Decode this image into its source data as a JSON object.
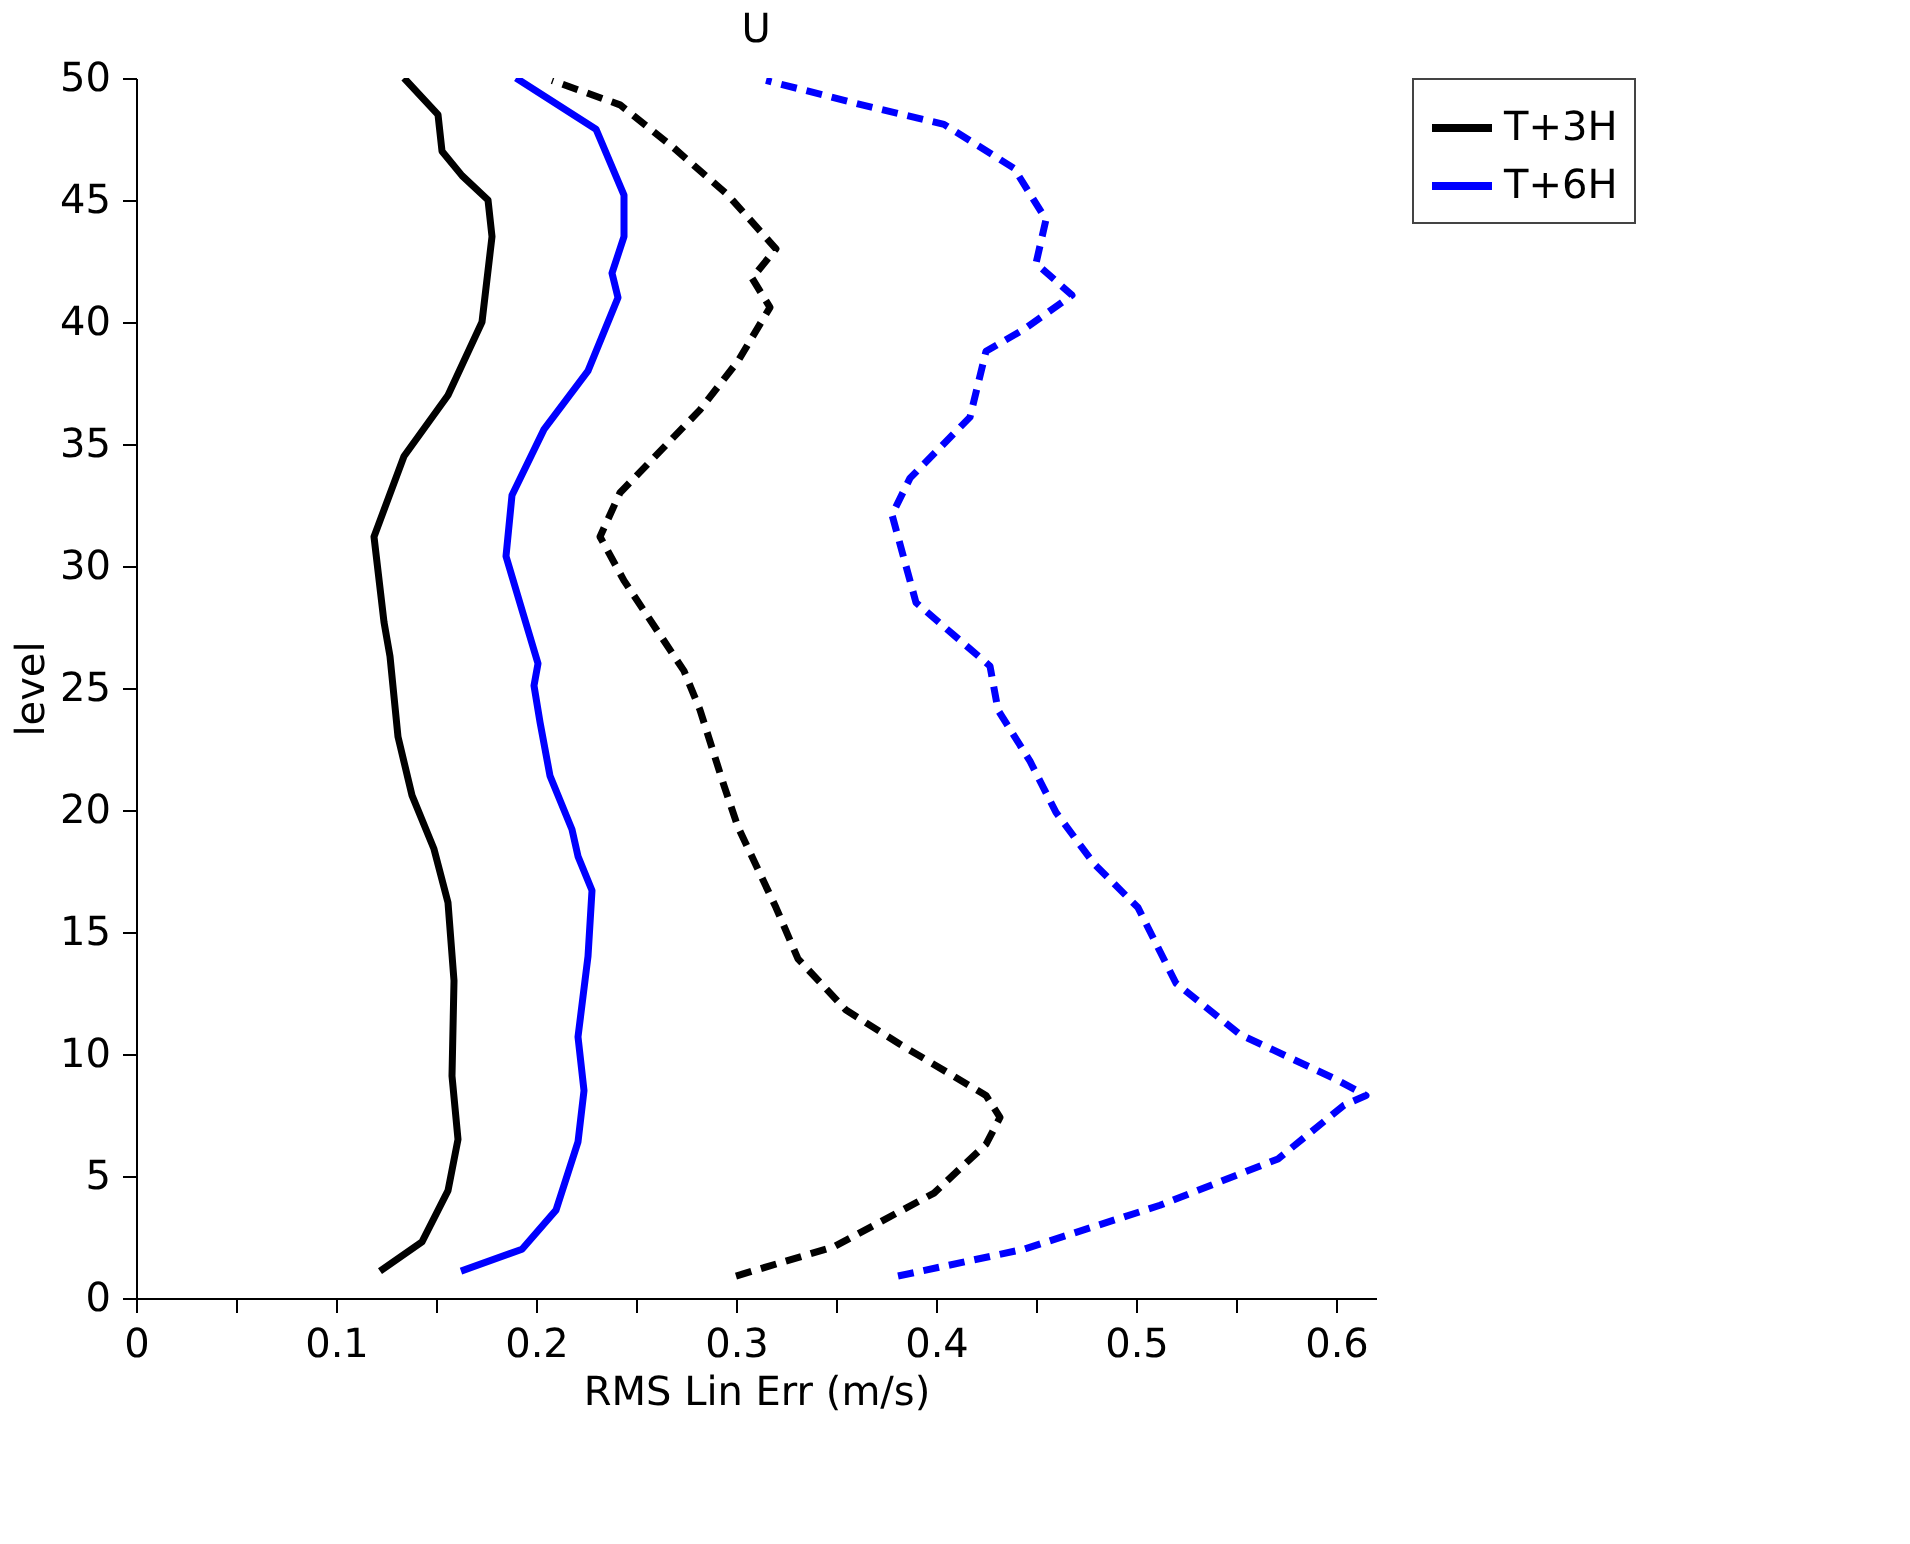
{
  "chart_data": {
    "type": "line",
    "title": "U",
    "xlabel": "RMS Lin Err (m/s)",
    "ylabel": "level",
    "xlim": [
      0,
      0.62
    ],
    "ylim": [
      0,
      50
    ],
    "xticks": [
      0,
      {
        "value": 0.05,
        "label": null
      },
      0.1,
      {
        "value": 0.15,
        "label": null
      },
      0.2,
      {
        "value": 0.25,
        "label": null
      },
      0.3,
      {
        "value": 0.35,
        "label": null
      },
      0.4,
      {
        "value": 0.45,
        "label": null
      },
      0.5,
      {
        "value": 0.55,
        "label": null
      },
      0.6
    ],
    "yticks": [
      0,
      5,
      10,
      15,
      20,
      25,
      30,
      35,
      40,
      45,
      50
    ],
    "grid": false,
    "legend": "right",
    "series": [
      {
        "name": "T+3H",
        "color": "#000000",
        "line_style": "solid",
        "x": [
          0.122,
          0.143,
          0.156,
          0.161,
          0.158,
          0.159,
          0.156,
          0.149,
          0.138,
          0.131,
          0.127,
          0.124,
          0.119,
          0.134,
          0.156,
          0.173,
          0.178,
          0.176,
          0.163,
          0.153,
          0.151,
          0.134
        ],
        "values": [
          1.1,
          2.3,
          4.4,
          6.5,
          9.1,
          13,
          16.2,
          18.4,
          20.6,
          23,
          26.3,
          27.7,
          31.2,
          34.5,
          37,
          40,
          43.5,
          45,
          46,
          47,
          48.5,
          50
        ]
      },
      {
        "name": "T+6H",
        "color": "#0000ff",
        "line_style": "solid",
        "x": [
          0.1625,
          0.193,
          0.21,
          0.221,
          0.224,
          0.221,
          0.226,
          0.228,
          0.221,
          0.218,
          0.207,
          0.202,
          0.199,
          0.201,
          0.193,
          0.185,
          0.188,
          0.204,
          0.226,
          0.241,
          0.238,
          0.244,
          0.244,
          0.23,
          0.19
        ],
        "values": [
          1.1,
          2,
          3.6,
          6.4,
          8.5,
          10.7,
          14,
          16.7,
          18.1,
          19.2,
          21.4,
          23.6,
          25.1,
          26,
          28.2,
          30.4,
          32.9,
          35.6,
          38,
          41,
          42,
          43.5,
          45.2,
          47.9,
          50
        ]
      },
      {
        "color": "#000000",
        "line_style": "dashed",
        "x": [
          0.3,
          0.349,
          0.399,
          0.425,
          0.432,
          0.425,
          0.382,
          0.355,
          0.331,
          0.32,
          0.301,
          0.294,
          0.282,
          0.274,
          0.244,
          0.232,
          0.242,
          0.282,
          0.301,
          0.317,
          0.308,
          0.32,
          0.296,
          0.268,
          0.242,
          0.208
        ],
        "values": [
          0.9,
          2.1,
          4.3,
          6.3,
          7.4,
          8.3,
          10.4,
          11.8,
          13.9,
          16,
          19.3,
          21,
          24.1,
          25.7,
          29.4,
          31.2,
          33,
          36.4,
          38.4,
          40.6,
          41.8,
          43,
          45.2,
          47.2,
          48.9,
          49.9
        ]
      },
      {
        "color": "#0000ff",
        "line_style": "dashed",
        "x": [
          0.381,
          0.444,
          0.512,
          0.571,
          0.604,
          0.615,
          0.599,
          0.552,
          0.52,
          0.512,
          0.501,
          0.479,
          0.46,
          0.447,
          0.431,
          0.427,
          0.39,
          0.378,
          0.387,
          0.417,
          0.425,
          0.444,
          0.468,
          0.45,
          0.455,
          0.439,
          0.404,
          0.363,
          0.315
        ],
        "values": [
          0.9,
          2,
          3.8,
          5.7,
          7.9,
          8.3,
          9,
          10.8,
          12.9,
          14.2,
          16,
          17.8,
          19.9,
          22,
          24.1,
          25.9,
          28.5,
          32.1,
          33.6,
          36.1,
          38.8,
          39.7,
          41.1,
          42.4,
          44.2,
          46.3,
          48.1,
          48.9,
          49.9
        ]
      }
    ]
  }
}
